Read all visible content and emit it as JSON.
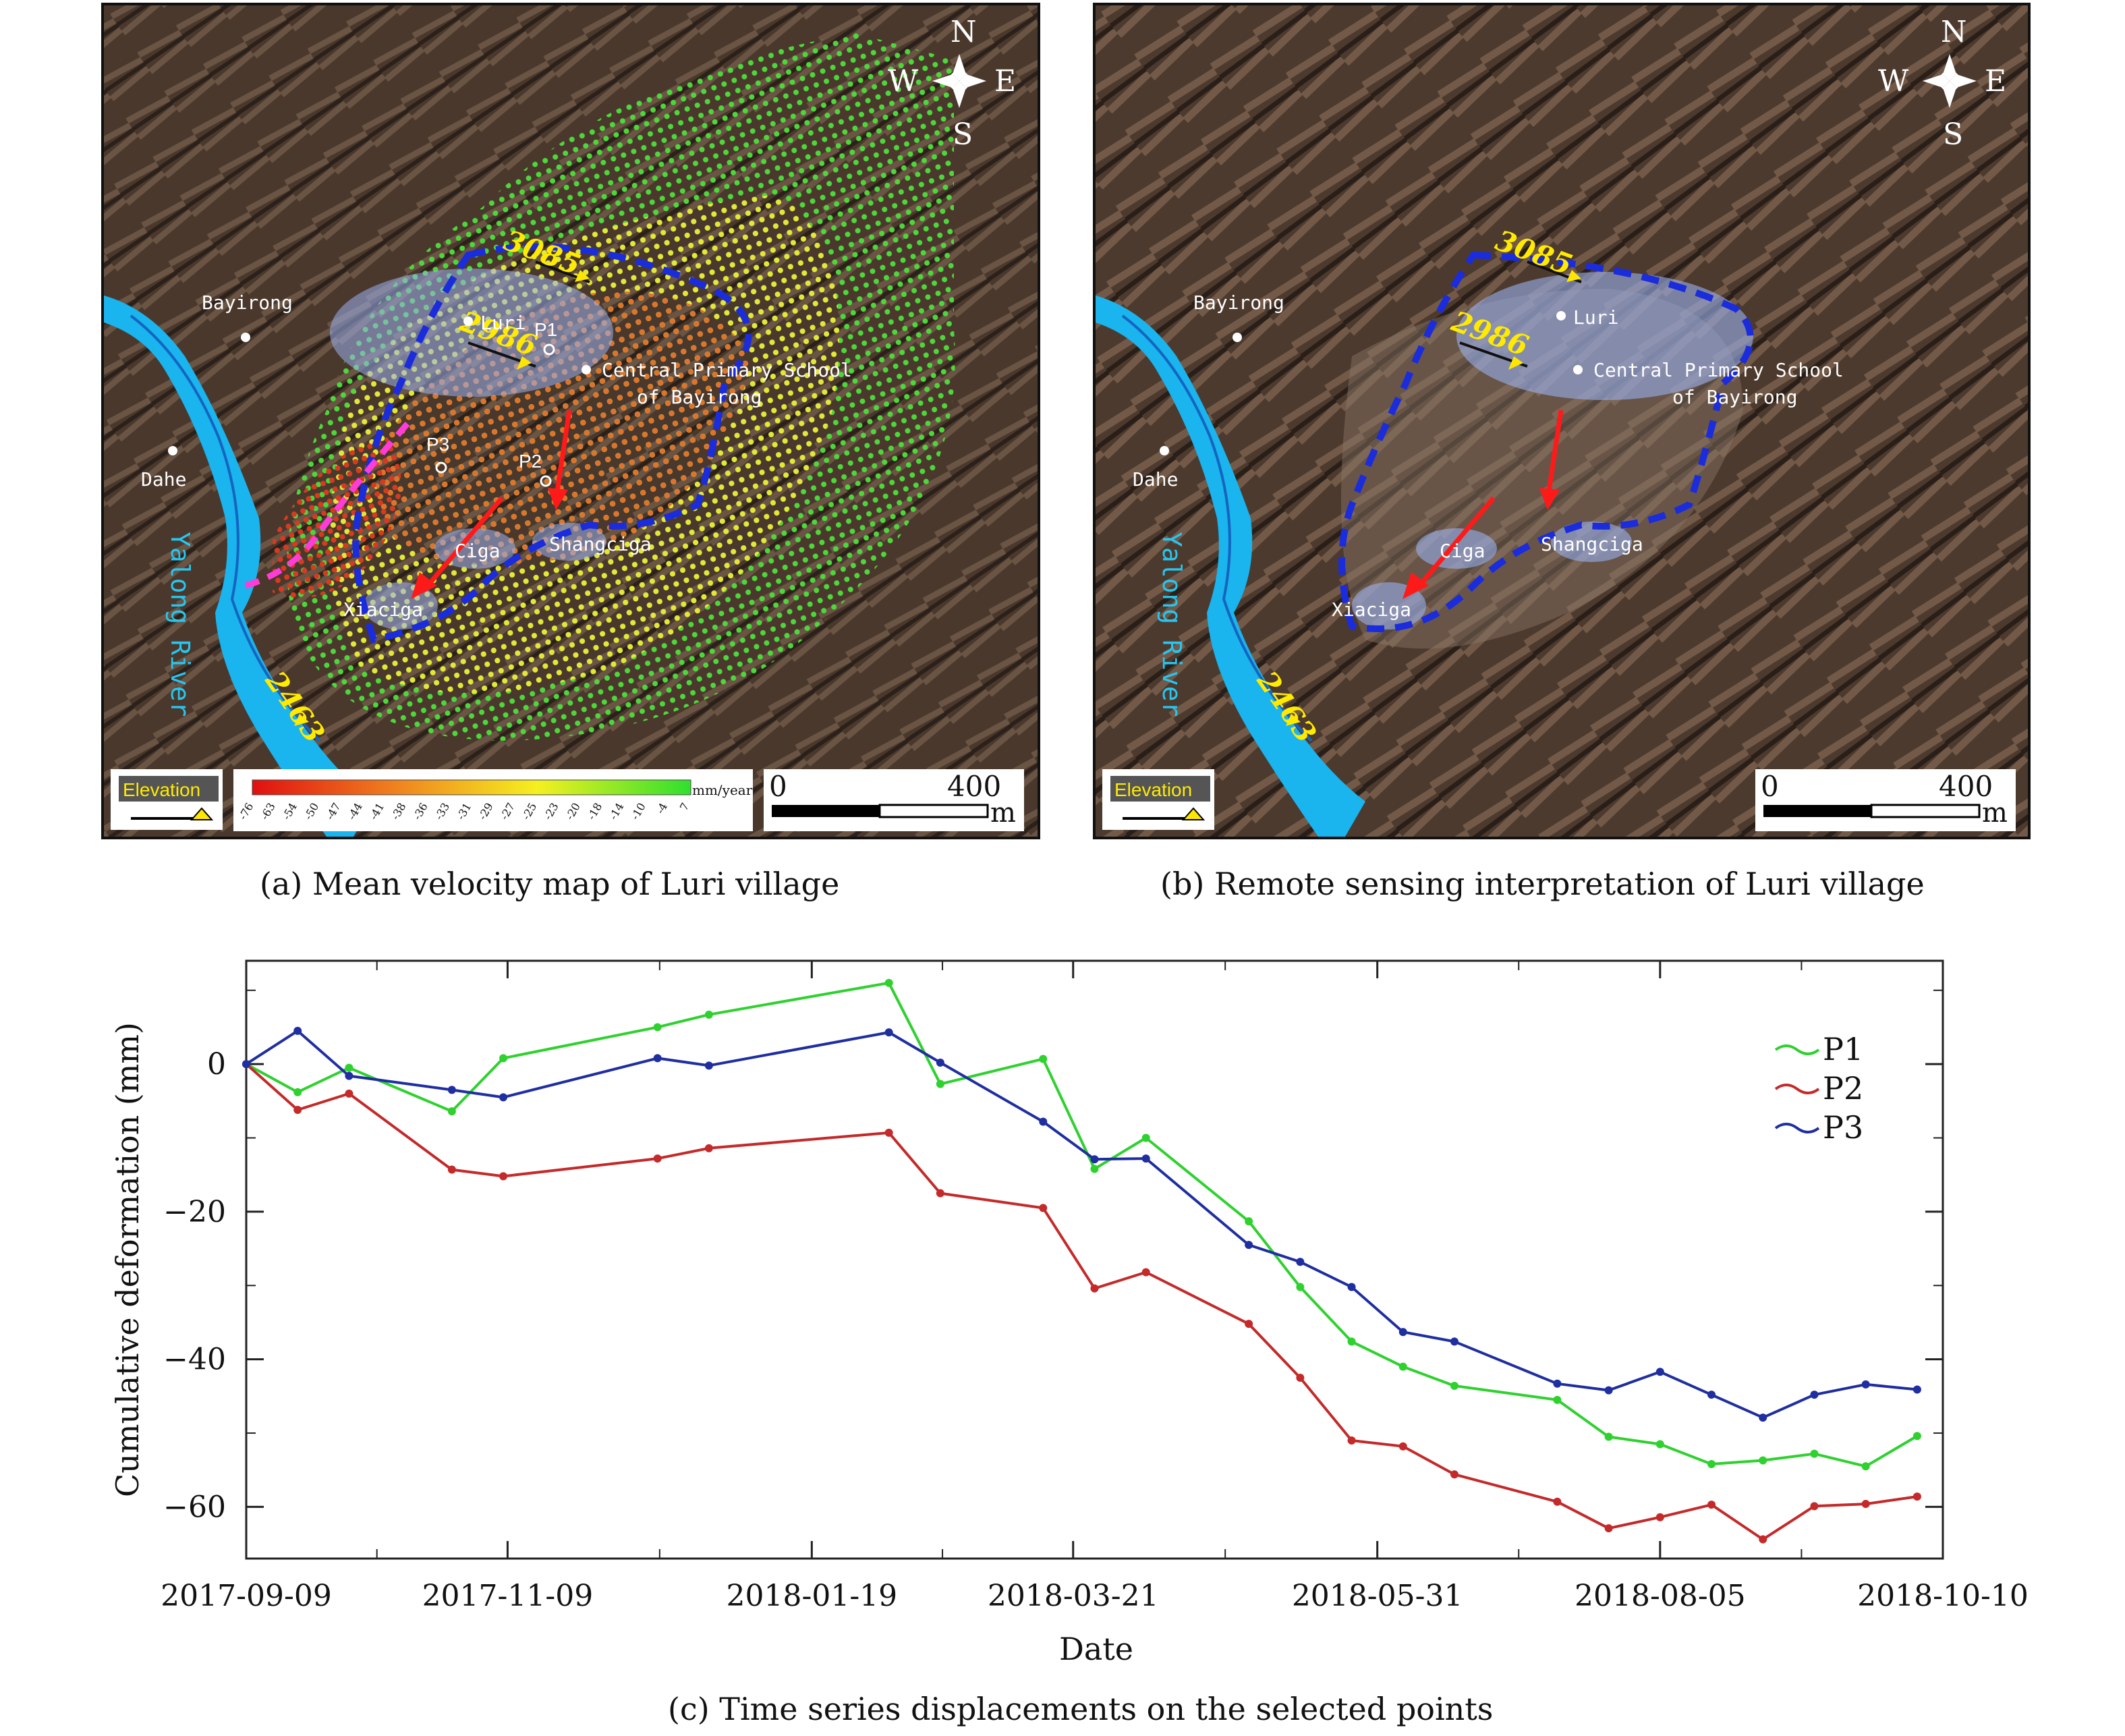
{
  "panel_a": {
    "caption": "(a) Mean velocity map of Luri village",
    "compass": {
      "n": "N",
      "s": "S",
      "e": "E",
      "w": "W"
    },
    "elevation_labels": [
      "3085",
      "2986",
      "2463"
    ],
    "places": {
      "bayirong": "Bayirong",
      "dahe": "Dahe",
      "luri": "Luri",
      "school_1": "Central Primary School",
      "school_2": "of Bayirong",
      "ciga": "Ciga",
      "shangciga": "Shangciga",
      "xiaciga": "Xiaciga",
      "river": "Yalong River"
    },
    "points": {
      "p1": "P1",
      "p2": "P2",
      "p3": "P3"
    },
    "legend_elevation": "Elevation",
    "colorbar_unit": "mm/year",
    "colorbar_ticks": [
      "-76",
      "-63",
      "-54",
      "-50",
      "-47",
      "-44",
      "-41",
      "-38",
      "-36",
      "-33",
      "-31",
      "-29",
      "-27",
      "-25",
      "-23",
      "-20",
      "-18",
      "-14",
      "-10",
      "-4",
      "7"
    ],
    "scalebar": {
      "zero": "0",
      "max": "400",
      "unit": "m"
    }
  },
  "panel_b": {
    "caption": "(b) Remote sensing interpretation of Luri village",
    "compass": {
      "n": "N",
      "s": "S",
      "e": "E",
      "w": "W"
    },
    "elevation_labels": [
      "3085",
      "2986",
      "2463"
    ],
    "places": {
      "bayirong": "Bayirong",
      "dahe": "Dahe",
      "luri": "Luri",
      "school_1": "Central Primary School",
      "school_2": "of Bayirong",
      "ciga": "Ciga",
      "shangciga": "Shangciga",
      "xiaciga": "Xiaciga",
      "river": "Yalong River"
    },
    "legend_elevation": "Elevation",
    "scalebar": {
      "zero": "0",
      "max": "400",
      "unit": "m"
    }
  },
  "chart_data": {
    "type": "line",
    "caption": "(c) Time series displacements on the selected points",
    "xlabel": "Date",
    "ylabel": "Cumulative deformation (mm)",
    "xlim": [
      "2017-09-09",
      "2018-10-10"
    ],
    "ylim": [
      -67,
      14
    ],
    "x_ticks": [
      "2017-09-09",
      "2017-11-09",
      "2018-01-19",
      "2018-03-21",
      "2018-05-31",
      "2018-08-05",
      "2018-10-10"
    ],
    "y_ticks": [
      0,
      -20,
      -40,
      -60
    ],
    "legend_position": "top-right",
    "colors": {
      "P1": "#2fd12f",
      "P2": "#c42a2a",
      "P3": "#1f2ea0"
    },
    "series": [
      {
        "name": "P1",
        "points": [
          [
            "2017-09-09",
            0
          ],
          [
            "2017-09-21",
            -3.8
          ],
          [
            "2017-10-03",
            -0.5
          ],
          [
            "2017-10-27",
            -6.4
          ],
          [
            "2017-11-08",
            0.8
          ],
          [
            "2017-12-14",
            5
          ],
          [
            "2017-12-26",
            6.7
          ],
          [
            "2018-02-06",
            11
          ],
          [
            "2018-02-18",
            -2.7
          ],
          [
            "2018-03-14",
            0.7
          ],
          [
            "2018-03-26",
            -14.2
          ],
          [
            "2018-04-07",
            -10
          ],
          [
            "2018-05-01",
            -21.3
          ],
          [
            "2018-05-13",
            -30.2
          ],
          [
            "2018-05-25",
            -37.6
          ],
          [
            "2018-06-06",
            -41
          ],
          [
            "2018-06-18",
            -43.6
          ],
          [
            "2018-07-12",
            -45.5
          ],
          [
            "2018-07-24",
            -50.5
          ],
          [
            "2018-08-05",
            -51.5
          ],
          [
            "2018-08-17",
            -54.2
          ],
          [
            "2018-08-29",
            -53.7
          ],
          [
            "2018-09-10",
            -52.8
          ],
          [
            "2018-09-22",
            -54.5
          ],
          [
            "2018-10-04",
            -50.4
          ]
        ]
      },
      {
        "name": "P2",
        "points": [
          [
            "2017-09-09",
            0
          ],
          [
            "2017-09-21",
            -6.2
          ],
          [
            "2017-10-03",
            -4
          ],
          [
            "2017-10-27",
            -14.3
          ],
          [
            "2017-11-08",
            -15.2
          ],
          [
            "2017-12-14",
            -12.8
          ],
          [
            "2017-12-26",
            -11.4
          ],
          [
            "2018-02-06",
            -9.3
          ],
          [
            "2018-02-18",
            -17.5
          ],
          [
            "2018-03-14",
            -19.5
          ],
          [
            "2018-03-26",
            -30.4
          ],
          [
            "2018-04-07",
            -28.2
          ],
          [
            "2018-05-01",
            -35.2
          ],
          [
            "2018-05-13",
            -42.5
          ],
          [
            "2018-05-25",
            -51
          ],
          [
            "2018-06-06",
            -51.8
          ],
          [
            "2018-06-18",
            -55.6
          ],
          [
            "2018-07-12",
            -59.3
          ],
          [
            "2018-07-24",
            -62.9
          ],
          [
            "2018-08-05",
            -61.4
          ],
          [
            "2018-08-17",
            -59.7
          ],
          [
            "2018-08-29",
            -64.4
          ],
          [
            "2018-09-10",
            -59.9
          ],
          [
            "2018-09-22",
            -59.6
          ],
          [
            "2018-10-04",
            -58.6
          ]
        ]
      },
      {
        "name": "P3",
        "points": [
          [
            "2017-09-09",
            0
          ],
          [
            "2017-09-21",
            4.5
          ],
          [
            "2017-10-03",
            -1.6
          ],
          [
            "2017-10-27",
            -3.5
          ],
          [
            "2017-11-08",
            -4.5
          ],
          [
            "2017-12-14",
            0.8
          ],
          [
            "2017-12-26",
            -0.2
          ],
          [
            "2018-02-06",
            4.3
          ],
          [
            "2018-02-18",
            0.2
          ],
          [
            "2018-03-14",
            -7.8
          ],
          [
            "2018-03-26",
            -12.9
          ],
          [
            "2018-04-07",
            -12.8
          ],
          [
            "2018-05-01",
            -24.5
          ],
          [
            "2018-05-13",
            -26.8
          ],
          [
            "2018-05-25",
            -30.2
          ],
          [
            "2018-06-06",
            -36.3
          ],
          [
            "2018-06-18",
            -37.6
          ],
          [
            "2018-07-12",
            -43.3
          ],
          [
            "2018-07-24",
            -44.2
          ],
          [
            "2018-08-05",
            -41.7
          ],
          [
            "2018-08-17",
            -44.8
          ],
          [
            "2018-08-29",
            -47.9
          ],
          [
            "2018-09-10",
            -44.8
          ],
          [
            "2018-09-22",
            -43.4
          ],
          [
            "2018-10-04",
            -44.1
          ]
        ]
      }
    ]
  }
}
